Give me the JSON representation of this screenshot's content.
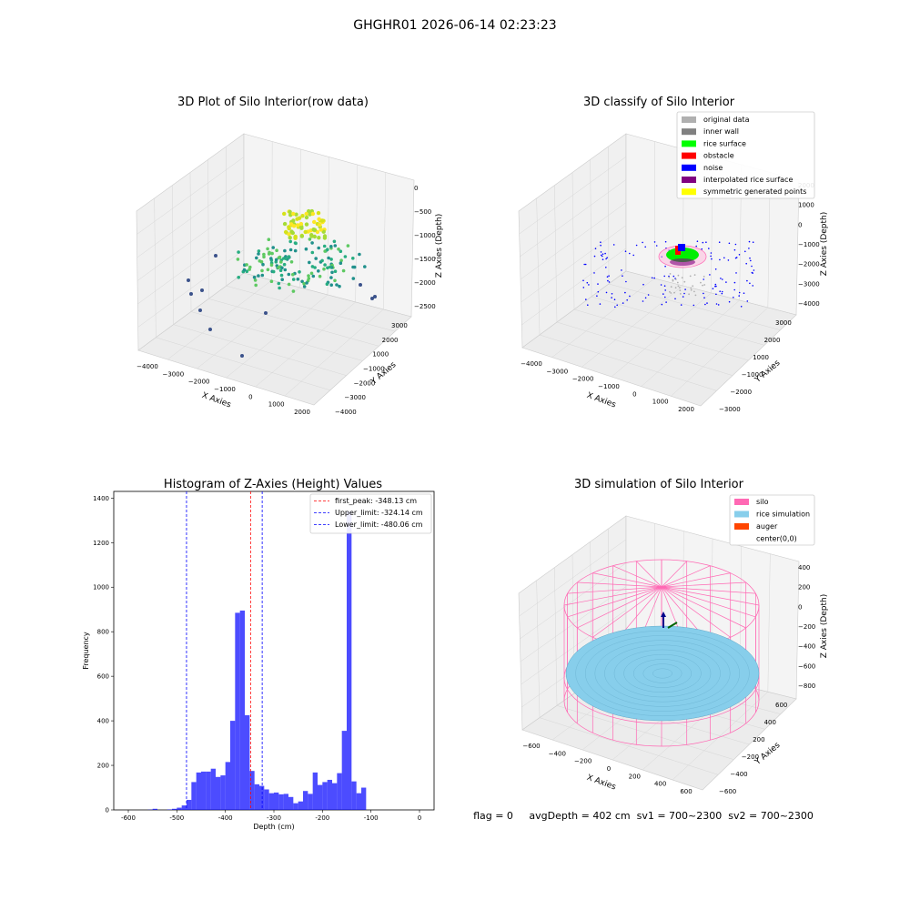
{
  "suptitle": "GHGHR01 2026-06-14 02:23:23",
  "footer_text": "flag = 0     avgDepth = 402 cm  sv1 = 700~2300  sv2 = 700~2300",
  "chart_data": [
    {
      "type": "scatter",
      "title": "3D Plot of Silo Interior(row data)",
      "xlabel": "X Axies",
      "ylabel": "Y Axies",
      "zlabel": "Z Axies (Depth)",
      "x_ticks": [
        "−4000",
        "−3000",
        "−2000",
        "−1000",
        "0",
        "1000",
        "2000"
      ],
      "y_ticks": [
        "3000",
        "2000",
        "1000",
        "−1000",
        "−2000",
        "−3000",
        "−4000"
      ],
      "z_ticks": [
        "0",
        "−500",
        "−1000",
        "−1500",
        "−2000",
        "−2500"
      ],
      "xlim": [
        -4300,
        2500
      ],
      "ylim": [
        -4300,
        3400
      ],
      "zlim": [
        -2700,
        100
      ],
      "colormap": "viridis"
    },
    {
      "type": "scatter",
      "title": "3D classify of Silo Interior",
      "xlabel": "X Axies",
      "ylabel": "Y Axies",
      "zlabel": "Z Axies (Depth)",
      "x_ticks": [
        "−4000",
        "−3000",
        "−2000",
        "−1000",
        "0",
        "1000",
        "2000"
      ],
      "y_ticks": [
        "3000",
        "2000",
        "1000",
        "−1000",
        "−2000",
        "−3000"
      ],
      "z_ticks": [
        "2000",
        "1000",
        "0",
        "−1000",
        "−2000",
        "−3000",
        "−4000"
      ],
      "legend_position": "top-right",
      "legend": [
        {
          "label": "original data",
          "color": "#b0b0b0"
        },
        {
          "label": "inner wall",
          "color": "#808080"
        },
        {
          "label": "rice surface",
          "color": "#00ff00"
        },
        {
          "label": "obstacle",
          "color": "#ff0000"
        },
        {
          "label": "noise",
          "color": "#0000ff"
        },
        {
          "label": "interpolated rice surface",
          "color": "#800080"
        },
        {
          "label": "symmetric generated points",
          "color": "#ffff00"
        }
      ]
    },
    {
      "type": "bar",
      "title": "Histogram of Z-Axies (Height) Values",
      "xlabel": "Depth (cm)",
      "ylabel": "Frequency",
      "xlim": [
        -630,
        30
      ],
      "ylim": [
        0,
        1430
      ],
      "x_ticks": [
        -600,
        -500,
        -400,
        -300,
        -200,
        -100,
        0
      ],
      "y_ticks": [
        0,
        200,
        400,
        600,
        800,
        1000,
        1200,
        1400
      ],
      "bar_color": "#0000ff",
      "bin_width": 10,
      "bins": [
        {
          "x": -600,
          "count": 0
        },
        {
          "x": -590,
          "count": 0
        },
        {
          "x": -580,
          "count": 0
        },
        {
          "x": -570,
          "count": 0
        },
        {
          "x": -560,
          "count": 1
        },
        {
          "x": -550,
          "count": 5
        },
        {
          "x": -540,
          "count": 0
        },
        {
          "x": -530,
          "count": 0
        },
        {
          "x": -520,
          "count": 2
        },
        {
          "x": -510,
          "count": 5
        },
        {
          "x": -500,
          "count": 10
        },
        {
          "x": -490,
          "count": 20
        },
        {
          "x": -480,
          "count": 45
        },
        {
          "x": -470,
          "count": 125
        },
        {
          "x": -460,
          "count": 168
        },
        {
          "x": -450,
          "count": 172
        },
        {
          "x": -440,
          "count": 172
        },
        {
          "x": -430,
          "count": 185
        },
        {
          "x": -420,
          "count": 148
        },
        {
          "x": -410,
          "count": 155
        },
        {
          "x": -400,
          "count": 215
        },
        {
          "x": -390,
          "count": 400
        },
        {
          "x": -380,
          "count": 885
        },
        {
          "x": -370,
          "count": 895
        },
        {
          "x": -360,
          "count": 425
        },
        {
          "x": -350,
          "count": 175
        },
        {
          "x": -340,
          "count": 115
        },
        {
          "x": -330,
          "count": 108
        },
        {
          "x": -320,
          "count": 92
        },
        {
          "x": -310,
          "count": 75
        },
        {
          "x": -300,
          "count": 78
        },
        {
          "x": -290,
          "count": 70
        },
        {
          "x": -280,
          "count": 72
        },
        {
          "x": -270,
          "count": 58
        },
        {
          "x": -260,
          "count": 30
        },
        {
          "x": -250,
          "count": 38
        },
        {
          "x": -240,
          "count": 85
        },
        {
          "x": -230,
          "count": 72
        },
        {
          "x": -220,
          "count": 168
        },
        {
          "x": -210,
          "count": 112
        },
        {
          "x": -200,
          "count": 125
        },
        {
          "x": -190,
          "count": 135
        },
        {
          "x": -180,
          "count": 120
        },
        {
          "x": -170,
          "count": 165
        },
        {
          "x": -160,
          "count": 355
        },
        {
          "x": -150,
          "count": 1340
        },
        {
          "x": -140,
          "count": 128
        },
        {
          "x": -130,
          "count": 75
        },
        {
          "x": -120,
          "count": 100
        }
      ],
      "vlines": [
        {
          "label": "first_peak: -348.13 cm",
          "x": -348.13,
          "color": "#ff0000"
        },
        {
          "label": "Upper_limit: -324.14 cm",
          "x": -324.14,
          "color": "#0000ff"
        },
        {
          "label": "Lower_limit: -480.06 cm",
          "x": -480.06,
          "color": "#0000ff"
        }
      ],
      "legend_position": "top-right"
    },
    {
      "type": "surface",
      "title": "3D simulation of Silo Interior",
      "xlabel": "X Axies",
      "ylabel": "Y Axies",
      "zlabel": "Z Axies (Depth)",
      "x_ticks": [
        "−600",
        "−400",
        "−200",
        "0",
        "200",
        "400",
        "600"
      ],
      "y_ticks": [
        "600",
        "400",
        "200",
        "−200",
        "−400",
        "−600"
      ],
      "z_ticks": [
        "400",
        "200",
        "0",
        "−200",
        "−400",
        "−600",
        "−800"
      ],
      "legend_position": "top-right",
      "legend": [
        {
          "label": "silo",
          "color": "#ff69b4"
        },
        {
          "label": "rice simulation",
          "color": "#87ceeb"
        },
        {
          "label": "auger",
          "color": "#ff4500"
        },
        {
          "label": "center(0,0)",
          "color": ""
        }
      ]
    }
  ]
}
